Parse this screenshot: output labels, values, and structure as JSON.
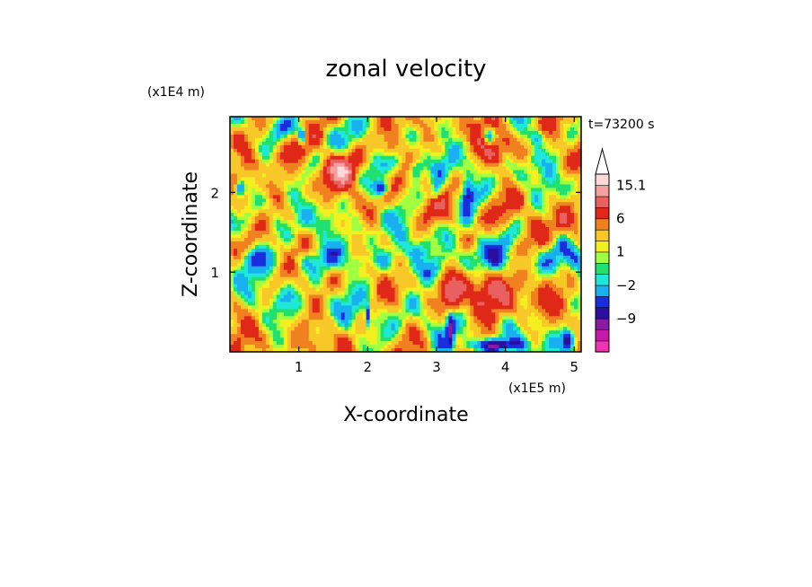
{
  "chart_data": {
    "type": "heatmap",
    "title": "zonal velocity",
    "xlabel": "X-coordinate",
    "ylabel": "Z-coordinate",
    "x_unit": "(x1E5 m)",
    "y_unit": "(x1E4 m)",
    "time_label": "t=73200 s",
    "xlim": [
      0,
      5.1
    ],
    "ylim": [
      0,
      2.95
    ],
    "x_ticks": [
      {
        "value": 1,
        "label": "1"
      },
      {
        "value": 2,
        "label": "2"
      },
      {
        "value": 3,
        "label": "3"
      },
      {
        "value": 4,
        "label": "4"
      },
      {
        "value": 5,
        "label": "5"
      }
    ],
    "y_ticks": [
      {
        "value": 1,
        "label": "1"
      },
      {
        "value": 2,
        "label": "2"
      }
    ],
    "colorbar": {
      "levels": [
        -15,
        -12,
        -9,
        -6,
        -4,
        -2,
        -1,
        0,
        1,
        2,
        4,
        6,
        9,
        12,
        15.1
      ],
      "colors": [
        "#f035b0",
        "#c71aa6",
        "#8a1aa0",
        "#2a0fa0",
        "#1a2ee0",
        "#18b0f0",
        "#20e8d8",
        "#20e070",
        "#a0ff40",
        "#f4f020",
        "#f8c828",
        "#f08020",
        "#e02818",
        "#e86060",
        "#f4a0a0",
        "#ffd8d8"
      ],
      "labels": [
        {
          "value": 15.1,
          "label": "15.1"
        },
        {
          "value": 6,
          "label": "6"
        },
        {
          "value": 1,
          "label": "1"
        },
        {
          "value": -2,
          "label": "−2"
        },
        {
          "value": -9,
          "label": "−9"
        }
      ],
      "extend": "max"
    },
    "field_features": {
      "background_mean": 2.2,
      "blobs": [
        {
          "x": 0.9,
          "z": 2.6,
          "amp": 6,
          "rx": 0.25,
          "rz": 0.18
        },
        {
          "x": 1.6,
          "z": 2.3,
          "amp": 7,
          "rx": 0.3,
          "rz": 0.2
        },
        {
          "x": 2.3,
          "z": 2.55,
          "amp": 6,
          "rx": 0.2,
          "rz": 0.15
        },
        {
          "x": 3.8,
          "z": 2.55,
          "amp": 6,
          "rx": 0.3,
          "rz": 0.2
        },
        {
          "x": 4.9,
          "z": 1.6,
          "amp": 5,
          "rx": 0.2,
          "rz": 0.25
        },
        {
          "x": 3.9,
          "z": 0.75,
          "amp": 6,
          "rx": 0.45,
          "rz": 0.3
        },
        {
          "x": 3.2,
          "z": 0.7,
          "amp": 7,
          "rx": 0.15,
          "rz": 0.25
        },
        {
          "x": 0.1,
          "z": 1.8,
          "amp": 6,
          "rx": 0.15,
          "rz": 0.2
        },
        {
          "x": 2.2,
          "z": 2.05,
          "amp": -10,
          "rx": 0.12,
          "rz": 0.1
        },
        {
          "x": 1.05,
          "z": 2.7,
          "amp": -9,
          "rx": 0.06,
          "rz": 0.1
        },
        {
          "x": 2.7,
          "z": 2.3,
          "amp": -8,
          "rx": 0.12,
          "rz": 0.15
        },
        {
          "x": 3.75,
          "z": 2.7,
          "amp": -9,
          "rx": 0.08,
          "rz": 0.1
        },
        {
          "x": 4.45,
          "z": 2.7,
          "amp": -8,
          "rx": 0.12,
          "rz": 0.12
        },
        {
          "x": 3.45,
          "z": 2.0,
          "amp": -9,
          "rx": 0.1,
          "rz": 0.18
        },
        {
          "x": 3.0,
          "z": 2.0,
          "amp": -7,
          "rx": 0.08,
          "rz": 0.12
        },
        {
          "x": 0.5,
          "z": 2.2,
          "amp": -6,
          "rx": 0.12,
          "rz": 0.12
        },
        {
          "x": 3.85,
          "z": 0.08,
          "amp": -10,
          "rx": 0.4,
          "rz": 0.08
        },
        {
          "x": 4.9,
          "z": 0.15,
          "amp": -9,
          "rx": 0.1,
          "rz": 0.15
        },
        {
          "x": 3.2,
          "z": 0.25,
          "amp": -9,
          "rx": 0.05,
          "rz": 0.25
        },
        {
          "x": 2.0,
          "z": 0.45,
          "amp": -8,
          "rx": 0.04,
          "rz": 0.15
        },
        {
          "x": 0.15,
          "z": 2.05,
          "amp": -8,
          "rx": 0.06,
          "rz": 0.1
        },
        {
          "x": 1.3,
          "z": 1.15,
          "amp": -3,
          "rx": 0.5,
          "rz": 0.15
        },
        {
          "x": 2.8,
          "z": 1.0,
          "amp": -3,
          "rx": 0.35,
          "rz": 0.12
        }
      ]
    }
  }
}
